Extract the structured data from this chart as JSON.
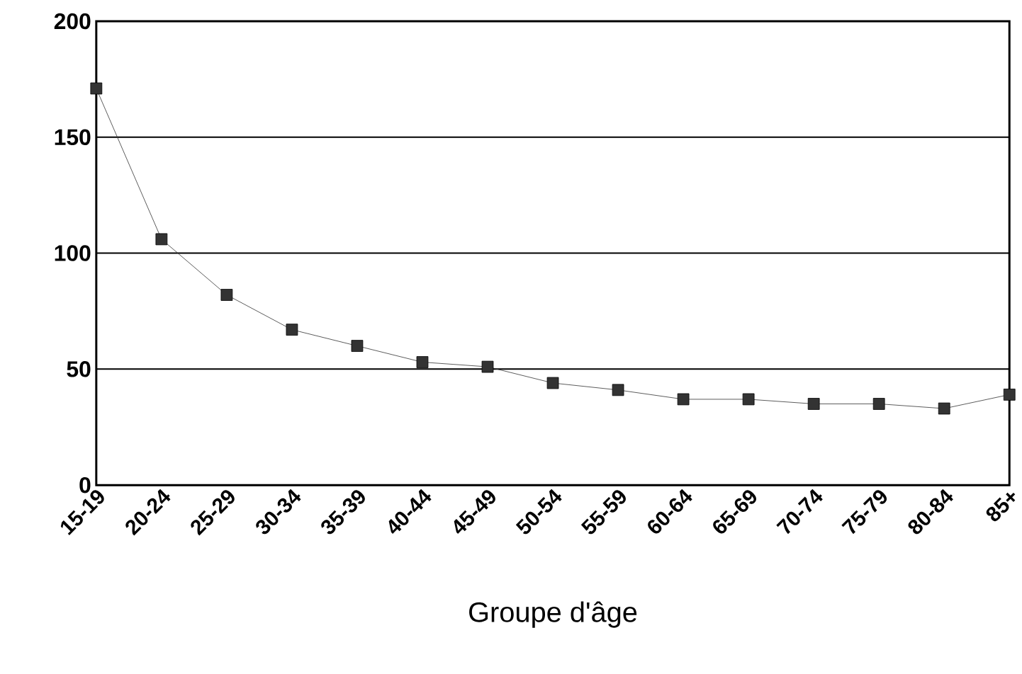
{
  "chart_data": {
    "type": "line",
    "xlabel": "Groupe d'âge",
    "categories": [
      "15-19",
      "20-24",
      "25-29",
      "30-34",
      "35-39",
      "40-44",
      "45-49",
      "50-54",
      "55-59",
      "60-64",
      "65-69",
      "70-74",
      "75-79",
      "80-84",
      "85+"
    ],
    "values": [
      171,
      106,
      82,
      67,
      60,
      53,
      51,
      44,
      41,
      37,
      37,
      35,
      35,
      33,
      39
    ],
    "color": "#333333",
    "marker": "square",
    "line_style": "solid",
    "ylim": [
      0,
      200
    ],
    "yticks": [
      0,
      50,
      100,
      150,
      200
    ],
    "grid": "y"
  }
}
